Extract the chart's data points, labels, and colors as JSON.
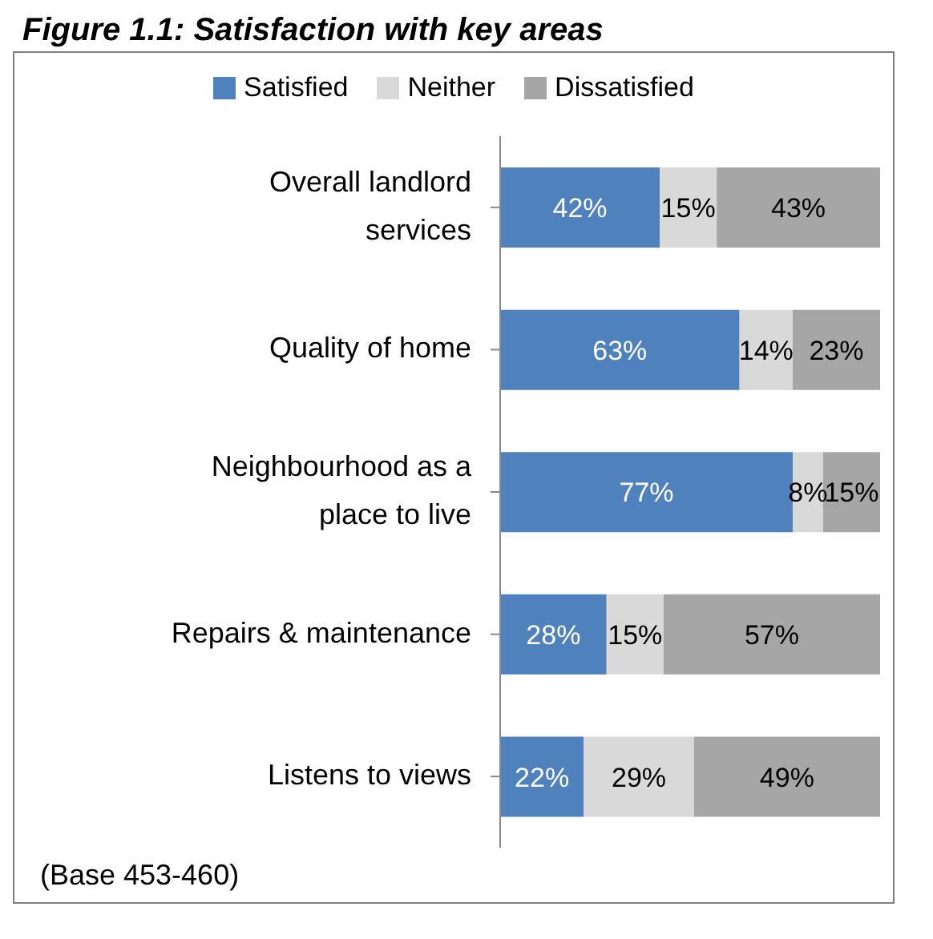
{
  "chart_data": {
    "type": "bar",
    "orientation": "horizontal",
    "stacked": true,
    "title": "Figure 1.1: Satisfaction with key areas",
    "categories": [
      "Overall landlord services",
      "Quality of home",
      "Neighbourhood as a place to live",
      "Repairs & maintenance",
      "Listens to views"
    ],
    "series": [
      {
        "name": "Satisfied",
        "color": "#4f81bd",
        "values": [
          42,
          63,
          77,
          28,
          22
        ],
        "value_labels": [
          "42%",
          "63%",
          "77%",
          "28%",
          "22%"
        ]
      },
      {
        "name": "Neither",
        "color": "#d9d9d9",
        "values": [
          15,
          14,
          8,
          15,
          29
        ],
        "value_labels": [
          "15%",
          "14%",
          "8%",
          "15%",
          "29%"
        ]
      },
      {
        "name": "Dissatisfied",
        "color": "#a6a6a6",
        "values": [
          43,
          23,
          15,
          57,
          49
        ],
        "value_labels": [
          "43%",
          "23%",
          "15%",
          "57%",
          "49%"
        ]
      }
    ],
    "tick_labels": "y",
    "legend": "top",
    "annotations": [
      "(Base 453-460)"
    ]
  }
}
